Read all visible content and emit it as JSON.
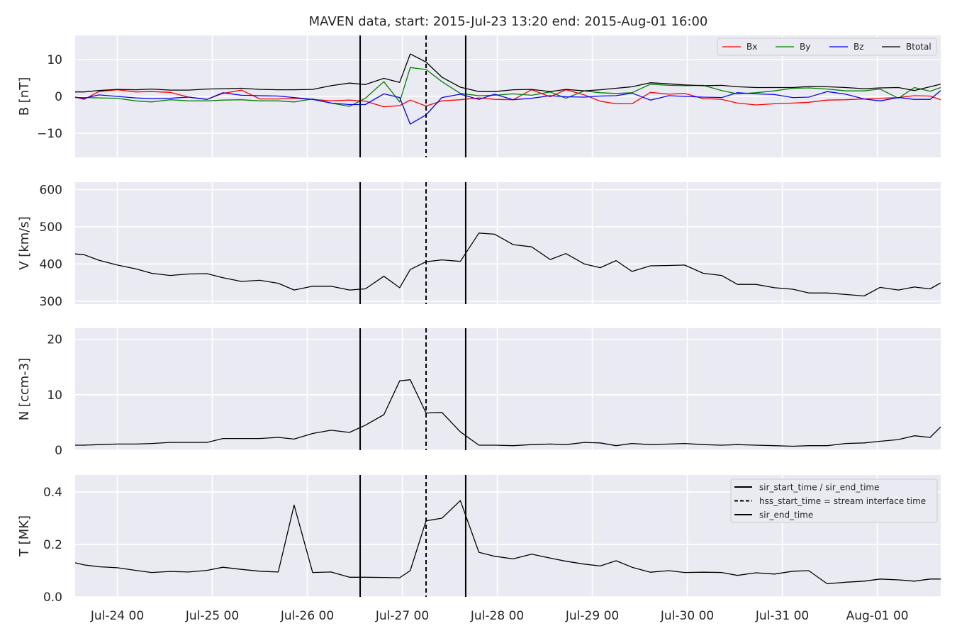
{
  "figure": {
    "title": "MAVEN data, start: 2015-Jul-23 13:20  end: 2015-Aug-01 16:00"
  },
  "chart_data": [
    {
      "type": "line",
      "ylabel": "B [nT]",
      "ylim": [
        -16.5,
        16.5
      ],
      "yticks": [
        -10,
        0,
        10
      ],
      "ytick_labels": [
        "−10",
        "0",
        "10"
      ],
      "grid": true,
      "legend": {
        "placement": "top-right",
        "entries": [
          "Bx",
          "By",
          "Bz",
          "Btotal"
        ]
      },
      "x": [
        -0.444,
        -0.35,
        -0.194,
        0.0,
        0.194,
        0.361,
        0.556,
        0.75,
        0.944,
        1.111,
        1.306,
        1.5,
        1.694,
        1.861,
        2.056,
        2.25,
        2.444,
        2.611,
        2.806,
        2.972,
        3.083,
        3.25,
        3.417,
        3.611,
        3.806,
        3.972,
        4.167,
        4.361,
        4.556,
        4.722,
        4.917,
        5.083,
        5.25,
        5.417,
        5.611,
        5.806,
        5.972,
        6.167,
        6.361,
        6.528,
        6.722,
        6.917,
        7.111,
        7.278,
        7.472,
        7.667,
        7.861,
        8.028,
        8.222,
        8.389,
        8.556,
        8.667
      ],
      "series": [
        {
          "name": "Bx",
          "color": "#ff0000",
          "values": [
            -0.2,
            -0.8,
            1.3,
            1.8,
            1.2,
            1.3,
            1.1,
            -0.2,
            -0.8,
            0.8,
            1.7,
            -0.7,
            -0.7,
            -0.5,
            -0.8,
            -1.2,
            -1.0,
            -1.3,
            -2.8,
            -2.5,
            -1.0,
            -2.6,
            -1.2,
            -0.9,
            -0.4,
            -0.8,
            -0.9,
            1.8,
            -0.1,
            1.8,
            0.4,
            -1.3,
            -2.0,
            -2.0,
            1.1,
            0.6,
            0.8,
            -0.6,
            -0.8,
            -1.8,
            -2.3,
            -2.0,
            -1.8,
            -1.6,
            -1.0,
            -0.9,
            -0.7,
            -0.5,
            -0.3,
            0.2,
            0.1,
            -0.9
          ]
        },
        {
          "name": "By",
          "color": "#008000",
          "values": [
            -0.3,
            -0.3,
            -0.4,
            -0.5,
            -1.2,
            -1.5,
            -0.9,
            -1.2,
            -1.2,
            -1.0,
            -0.9,
            -1.2,
            -1.2,
            -1.5,
            -0.7,
            -1.8,
            -2.7,
            -0.5,
            4.0,
            -1.5,
            7.8,
            7.3,
            4.0,
            0.8,
            0.2,
            0.3,
            0.7,
            0.3,
            1.2,
            -0.5,
            1.5,
            1.0,
            0.8,
            1.0,
            3.3,
            3.0,
            2.9,
            3.0,
            1.6,
            0.7,
            1.0,
            1.5,
            2.2,
            2.3,
            2.0,
            1.5,
            1.5,
            2.0,
            -0.5,
            2.4,
            1.4,
            2.4
          ]
        },
        {
          "name": "Bz",
          "color": "#0000ff",
          "values": [
            -0.2,
            -0.5,
            0.4,
            0.0,
            -0.4,
            -0.6,
            -0.5,
            -0.2,
            -0.8,
            1.0,
            0.3,
            0.2,
            0.1,
            -0.3,
            -0.8,
            -1.8,
            -2.2,
            -2.2,
            0.7,
            -0.3,
            -7.5,
            -5.0,
            -0.3,
            0.6,
            -0.8,
            0.6,
            -0.9,
            -0.5,
            0.2,
            -0.1,
            -0.2,
            0.1,
            0.2,
            0.9,
            -1.0,
            0.2,
            0.0,
            -0.2,
            -0.3,
            1.0,
            0.7,
            0.5,
            -0.3,
            -0.2,
            1.3,
            0.6,
            -0.7,
            -1.2,
            -0.3,
            -0.8,
            -0.8,
            1.6
          ]
        },
        {
          "name": "Btotal",
          "color": "#000000",
          "values": [
            1.2,
            1.2,
            1.6,
            1.9,
            1.8,
            2.0,
            1.7,
            1.7,
            2.0,
            2.1,
            2.2,
            1.9,
            1.8,
            1.8,
            1.9,
            2.9,
            3.6,
            3.2,
            4.9,
            3.8,
            11.5,
            9.3,
            5.2,
            2.5,
            1.3,
            1.3,
            1.8,
            1.9,
            1.3,
            1.9,
            1.5,
            1.8,
            2.2,
            2.6,
            3.7,
            3.4,
            3.1,
            2.9,
            3.0,
            2.6,
            2.4,
            2.4,
            2.4,
            2.7,
            2.6,
            2.4,
            2.1,
            2.3,
            2.4,
            1.6,
            2.6,
            3.3
          ]
        }
      ]
    },
    {
      "type": "line",
      "ylabel": "V [km/s]",
      "ylim": [
        292,
        620
      ],
      "yticks": [
        300,
        400,
        500,
        600
      ],
      "ytick_labels": [
        "300",
        "400",
        "500",
        "600"
      ],
      "grid": true,
      "x": [
        -0.444,
        -0.35,
        -0.194,
        0.0,
        0.194,
        0.361,
        0.556,
        0.75,
        0.944,
        1.111,
        1.306,
        1.5,
        1.694,
        1.861,
        2.056,
        2.25,
        2.444,
        2.611,
        2.806,
        2.972,
        3.083,
        3.25,
        3.417,
        3.611,
        3.806,
        3.972,
        4.167,
        4.361,
        4.556,
        4.722,
        4.917,
        5.083,
        5.25,
        5.417,
        5.611,
        5.806,
        5.972,
        6.167,
        6.361,
        6.528,
        6.722,
        6.917,
        7.111,
        7.278,
        7.472,
        7.667,
        7.861,
        8.028,
        8.222,
        8.389,
        8.556,
        8.667
      ],
      "series": [
        {
          "color": "#000000",
          "values": [
            427,
            425,
            410,
            397,
            387,
            375,
            369,
            373,
            374,
            363,
            353,
            356,
            348,
            330,
            340,
            340,
            330,
            333,
            367,
            336,
            385,
            406,
            411,
            407,
            483,
            480,
            452,
            446,
            412,
            428,
            400,
            390,
            409,
            380,
            395,
            396,
            397,
            375,
            369,
            345,
            345,
            336,
            332,
            322,
            322,
            318,
            314,
            337,
            330,
            338,
            333,
            349
          ]
        }
      ]
    },
    {
      "type": "line",
      "ylabel": "N [ccm-3]",
      "ylim": [
        0,
        22
      ],
      "yticks": [
        0,
        10,
        20
      ],
      "ytick_labels": [
        "0",
        "10",
        "20"
      ],
      "grid": true,
      "x": [
        -0.444,
        -0.35,
        -0.194,
        0.0,
        0.194,
        0.361,
        0.556,
        0.75,
        0.944,
        1.111,
        1.306,
        1.5,
        1.694,
        1.861,
        2.056,
        2.25,
        2.444,
        2.611,
        2.806,
        2.972,
        3.083,
        3.25,
        3.417,
        3.611,
        3.806,
        3.972,
        4.167,
        4.361,
        4.556,
        4.722,
        4.917,
        5.083,
        5.25,
        5.417,
        5.611,
        5.806,
        5.972,
        6.167,
        6.361,
        6.528,
        6.722,
        6.917,
        7.111,
        7.278,
        7.472,
        7.667,
        7.861,
        8.028,
        8.222,
        8.389,
        8.556,
        8.667
      ],
      "series": [
        {
          "color": "#000000",
          "values": [
            0.9,
            0.9,
            1.0,
            1.1,
            1.1,
            1.2,
            1.4,
            1.4,
            1.4,
            2.1,
            2.1,
            2.1,
            2.3,
            2.0,
            3.0,
            3.6,
            3.2,
            4.5,
            6.4,
            12.5,
            12.7,
            6.7,
            6.8,
            3.3,
            0.9,
            0.9,
            0.8,
            1.0,
            1.1,
            1.0,
            1.4,
            1.3,
            0.8,
            1.2,
            1.0,
            1.1,
            1.2,
            1.0,
            0.9,
            1.0,
            0.9,
            0.8,
            0.7,
            0.8,
            0.8,
            1.2,
            1.3,
            1.6,
            1.9,
            2.6,
            2.3,
            4.2
          ]
        }
      ]
    },
    {
      "type": "line",
      "ylabel": "T [MK]",
      "ylim": [
        0,
        0.465
      ],
      "yticks": [
        0.0,
        0.2,
        0.4
      ],
      "ytick_labels": [
        "0.0",
        "0.2",
        "0.4"
      ],
      "grid": true,
      "legend": {
        "placement": "top-right",
        "entries": [
          "sir_start_time / sir_end_time",
          "hss_start_time = stream interface time",
          "sir_end_time"
        ]
      },
      "x": [
        -0.444,
        -0.35,
        -0.194,
        0.0,
        0.194,
        0.361,
        0.556,
        0.75,
        0.944,
        1.111,
        1.306,
        1.5,
        1.694,
        1.861,
        2.056,
        2.25,
        2.444,
        2.611,
        2.806,
        2.972,
        3.083,
        3.25,
        3.417,
        3.611,
        3.806,
        3.972,
        4.167,
        4.361,
        4.556,
        4.722,
        4.917,
        5.083,
        5.25,
        5.417,
        5.611,
        5.806,
        5.972,
        6.167,
        6.361,
        6.528,
        6.722,
        6.917,
        7.111,
        7.278,
        7.472,
        7.667,
        7.861,
        8.028,
        8.222,
        8.389,
        8.556,
        8.667
      ],
      "series": [
        {
          "color": "#000000",
          "values": [
            0.13,
            0.122,
            0.115,
            0.111,
            0.101,
            0.093,
            0.097,
            0.095,
            0.101,
            0.113,
            0.105,
            0.098,
            0.095,
            0.35,
            0.093,
            0.095,
            0.075,
            0.075,
            0.074,
            0.073,
            0.1,
            0.29,
            0.3,
            0.367,
            0.17,
            0.155,
            0.145,
            0.163,
            0.148,
            0.136,
            0.125,
            0.118,
            0.138,
            0.113,
            0.094,
            0.1,
            0.093,
            0.094,
            0.093,
            0.082,
            0.092,
            0.087,
            0.098,
            0.1,
            0.05,
            0.056,
            0.06,
            0.068,
            0.065,
            0.06,
            0.068,
            0.068
          ]
        }
      ]
    }
  ],
  "x_axis": {
    "xlim": [
      -0.444,
      8.667
    ],
    "ticks": [
      0,
      1,
      2,
      3,
      4,
      5,
      6,
      7,
      8
    ],
    "tick_labels": [
      "Jul-24 00",
      "Jul-25 00",
      "Jul-26 00",
      "Jul-27 00",
      "Jul-28 00",
      "Jul-29 00",
      "Jul-30 00",
      "Jul-31 00",
      "Aug-01 00"
    ]
  },
  "event_lines": [
    {
      "x": 2.556,
      "style": "solid"
    },
    {
      "x": 3.25,
      "style": "dashed"
    },
    {
      "x": 3.667,
      "style": "solid"
    }
  ],
  "legend_styles": [
    "solid",
    "dashed",
    "solid"
  ]
}
